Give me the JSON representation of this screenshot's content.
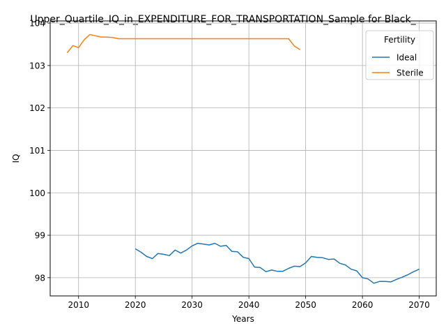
{
  "chart_data": {
    "type": "line",
    "title": "Upper_Quartile_IQ_in_EXPENDITURE_FOR_TRANSPORTATION_Sample for Black_",
    "xlabel": "Years",
    "ylabel": "IQ",
    "xlim": [
      2005,
      2073
    ],
    "ylim": [
      97.57,
      104.05
    ],
    "xticks": [
      2010,
      2020,
      2030,
      2040,
      2050,
      2060,
      2070
    ],
    "yticks": [
      98,
      99,
      100,
      101,
      102,
      103,
      104
    ],
    "grid": true,
    "legend": {
      "title": "Fertility",
      "placement": "top-right"
    },
    "series": [
      {
        "name": "Ideal",
        "color": "#1f77b4",
        "x": [
          2020,
          2021,
          2022,
          2023,
          2024,
          2025,
          2026,
          2027,
          2028,
          2029,
          2030,
          2031,
          2032,
          2033,
          2034,
          2035,
          2036,
          2037,
          2038,
          2039,
          2040,
          2041,
          2042,
          2043,
          2044,
          2045,
          2046,
          2047,
          2048,
          2049,
          2050,
          2051,
          2052,
          2053,
          2054,
          2055,
          2056,
          2057,
          2058,
          2059,
          2060,
          2061,
          2062,
          2063,
          2064,
          2065,
          2066,
          2067,
          2068,
          2069,
          2070
        ],
        "y": [
          98.68,
          98.6,
          98.5,
          98.45,
          98.57,
          98.55,
          98.52,
          98.65,
          98.58,
          98.65,
          98.75,
          98.81,
          98.79,
          98.77,
          98.81,
          98.74,
          98.76,
          98.62,
          98.61,
          98.48,
          98.45,
          98.25,
          98.24,
          98.14,
          98.18,
          98.15,
          98.15,
          98.22,
          98.27,
          98.26,
          98.35,
          98.5,
          98.48,
          98.47,
          98.43,
          98.44,
          98.34,
          98.3,
          98.2,
          98.16,
          98.0,
          97.97,
          97.87,
          97.91,
          97.91,
          97.9,
          97.96,
          98.01,
          98.07,
          98.14,
          98.2
        ]
      },
      {
        "name": "Sterile",
        "color": "#ff7f0e",
        "x": [
          2008,
          2009,
          2010,
          2011,
          2012,
          2013,
          2014,
          2015,
          2016,
          2017,
          2018,
          2019,
          2020,
          2021,
          2022,
          2023,
          2024,
          2025,
          2026,
          2027,
          2028,
          2029,
          2030,
          2031,
          2032,
          2033,
          2034,
          2035,
          2036,
          2037,
          2038,
          2039,
          2040,
          2041,
          2042,
          2043,
          2044,
          2045,
          2046,
          2047,
          2048,
          2049
        ],
        "y": [
          103.3,
          103.47,
          103.42,
          103.61,
          103.73,
          103.7,
          103.67,
          103.67,
          103.66,
          103.63,
          103.63,
          103.63,
          103.63,
          103.63,
          103.63,
          103.63,
          103.63,
          103.63,
          103.63,
          103.63,
          103.63,
          103.63,
          103.63,
          103.63,
          103.63,
          103.63,
          103.63,
          103.63,
          103.63,
          103.63,
          103.63,
          103.63,
          103.63,
          103.63,
          103.63,
          103.63,
          103.63,
          103.63,
          103.63,
          103.63,
          103.46,
          103.37
        ]
      }
    ]
  }
}
